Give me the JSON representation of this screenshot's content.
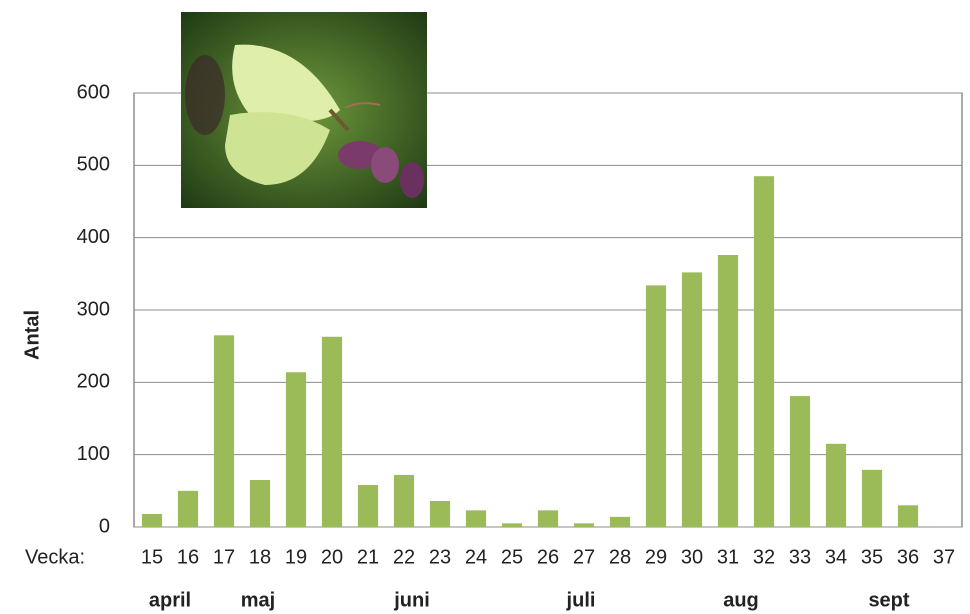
{
  "chart_data": {
    "type": "bar",
    "y_label": "Antal",
    "x_label": "Vecka:",
    "categories": [
      "15",
      "16",
      "17",
      "18",
      "19",
      "20",
      "21",
      "22",
      "23",
      "24",
      "25",
      "26",
      "27",
      "28",
      "29",
      "30",
      "31",
      "32",
      "33",
      "34",
      "35",
      "36",
      "37"
    ],
    "values": [
      18,
      50,
      265,
      65,
      214,
      263,
      58,
      72,
      36,
      23,
      5,
      23,
      5,
      14,
      334,
      352,
      376,
      485,
      181,
      115,
      79,
      30,
      null
    ],
    "color": "#9bbb59",
    "ylim": [
      0,
      600
    ],
    "yticks": [
      0,
      100,
      200,
      300,
      400,
      500,
      600
    ],
    "grid": true,
    "month_labels": [
      "april",
      "maj",
      "juni",
      "juli",
      "aug",
      "sept"
    ]
  }
}
